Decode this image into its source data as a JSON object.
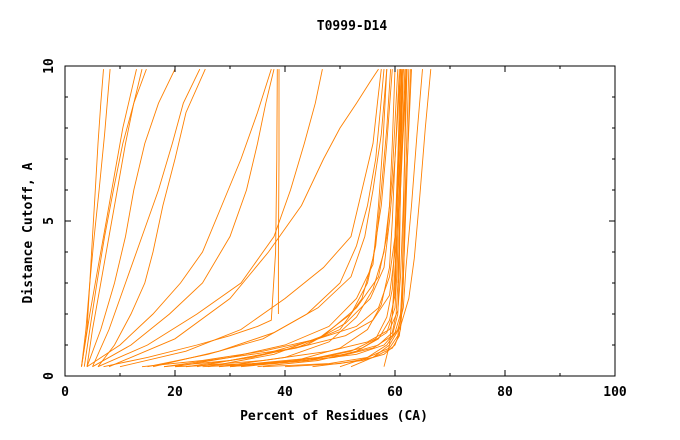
{
  "chart_data": {
    "type": "line",
    "title": "T0999-D14",
    "xlabel": "Percent of Residues (CA)",
    "ylabel": "Distance Cutoff, A",
    "xlim": [
      0,
      100
    ],
    "ylim": [
      0,
      10
    ],
    "x_ticks": [
      "0",
      "20",
      "40",
      "60",
      "80",
      "100"
    ],
    "y_ticks": [
      "0",
      "5",
      "10"
    ],
    "grid": false,
    "legend": "none",
    "line_color": "#ff8000",
    "series": [
      {
        "x": [
          3.0,
          4.0,
          4.5,
          5.0,
          5.5,
          6.0,
          6.5,
          7.0
        ],
        "y": [
          0.3,
          1.5,
          3.0,
          4.5,
          6.0,
          7.5,
          8.8,
          9.9
        ]
      },
      {
        "x": [
          3.0,
          3.8,
          4.5,
          5.3,
          6.2,
          7.2,
          8.2
        ],
        "y": [
          0.3,
          1.5,
          3.0,
          4.5,
          6.0,
          7.8,
          9.9
        ]
      },
      {
        "x": [
          3.5,
          4.5,
          5.8,
          7.2,
          8.8,
          10.5,
          12.5,
          14.0
        ],
        "y": [
          0.3,
          1.5,
          3.0,
          4.5,
          6.0,
          7.5,
          8.8,
          9.9
        ]
      },
      {
        "x": [
          4.0,
          5.0,
          6.5,
          8.0,
          9.5,
          11.0,
          12.5,
          14.8
        ],
        "y": [
          0.3,
          1.5,
          3.0,
          4.5,
          6.0,
          7.5,
          8.8,
          9.9
        ]
      },
      {
        "x": [
          3.0,
          4.5,
          6.0,
          7.5,
          9.0,
          10.5,
          13.0
        ],
        "y": [
          0.3,
          2.0,
          3.5,
          5.0,
          6.5,
          8.0,
          9.9
        ]
      },
      {
        "x": [
          4.0,
          6.5,
          9.0,
          11.0,
          12.5,
          14.5,
          17.0,
          20.0
        ],
        "y": [
          0.3,
          1.5,
          3.0,
          4.5,
          6.0,
          7.5,
          8.8,
          9.9
        ]
      },
      {
        "x": [
          5.0,
          8.0,
          11.0,
          14.0,
          17.0,
          19.5,
          21.5,
          24.5
        ],
        "y": [
          0.3,
          1.5,
          3.0,
          4.5,
          6.0,
          7.5,
          8.8,
          9.9
        ]
      },
      {
        "x": [
          6.0,
          9.0,
          12.0,
          14.5,
          16.0,
          17.8,
          20.0,
          22.0,
          25.5
        ],
        "y": [
          0.3,
          1.0,
          2.0,
          3.0,
          4.0,
          5.5,
          7.0,
          8.5,
          9.9
        ]
      },
      {
        "x": [
          4.0,
          10.0,
          16.0,
          21.0,
          25.0,
          28.5,
          32.0,
          35.0,
          37.5
        ],
        "y": [
          0.3,
          1.0,
          2.0,
          3.0,
          4.0,
          5.5,
          7.0,
          8.5,
          9.9
        ]
      },
      {
        "x": [
          5.0,
          12.0,
          19.0,
          25.0,
          30.0,
          33.0,
          35.0,
          36.5,
          38.0
        ],
        "y": [
          0.3,
          1.0,
          2.0,
          3.0,
          4.5,
          6.0,
          7.5,
          8.8,
          9.9
        ]
      },
      {
        "x": [
          7.0,
          15.0,
          24.0,
          30.0,
          35.0,
          37.5,
          38.3,
          38.5,
          38.6
        ],
        "y": [
          0.3,
          0.6,
          1.0,
          1.3,
          1.6,
          1.8,
          4.0,
          7.0,
          9.9
        ]
      },
      {
        "x": [
          38.8,
          38.8,
          38.9,
          38.9
        ],
        "y": [
          2.0,
          4.0,
          7.0,
          9.9
        ]
      },
      {
        "x": [
          6.0,
          15.0,
          24.0,
          32.0,
          38.0,
          41.0,
          43.5,
          45.5,
          46.8
        ],
        "y": [
          0.3,
          1.0,
          2.0,
          3.0,
          4.5,
          6.0,
          7.5,
          8.8,
          9.9
        ]
      },
      {
        "x": [
          8.0,
          20.0,
          30.0,
          37.0,
          43.0,
          47.0,
          50.0,
          53.0,
          55.5,
          57.0
        ],
        "y": [
          0.3,
          1.2,
          2.5,
          4.0,
          5.5,
          7.0,
          8.0,
          8.8,
          9.5,
          9.9
        ]
      },
      {
        "x": [
          10.0,
          22.0,
          32.0,
          40.0,
          47.0,
          52.0,
          54.0,
          56.0,
          56.8,
          57.5
        ],
        "y": [
          0.3,
          0.8,
          1.5,
          2.5,
          3.5,
          4.5,
          6.0,
          7.5,
          8.8,
          9.9
        ]
      },
      {
        "x": [
          15.0,
          26.0,
          36.0,
          44.0,
          50.0,
          53.0,
          55.0,
          56.5,
          57.3,
          58.0
        ],
        "y": [
          0.3,
          0.7,
          1.2,
          2.0,
          3.0,
          4.2,
          5.5,
          7.0,
          8.5,
          9.9
        ]
      },
      {
        "x": [
          20.0,
          30.0,
          40.0,
          48.0,
          53.0,
          56.0,
          57.0,
          57.8,
          58.5
        ],
        "y": [
          0.3,
          0.6,
          1.0,
          1.6,
          2.5,
          3.6,
          5.5,
          7.5,
          9.9
        ]
      },
      {
        "x": [
          16.0,
          28.0,
          38.0,
          46.0,
          52.0,
          54.5,
          56.0,
          57.5,
          58.5
        ],
        "y": [
          0.3,
          0.8,
          1.4,
          2.2,
          3.2,
          4.5,
          6.0,
          7.8,
          9.9
        ]
      },
      {
        "x": [
          24.0,
          36.0,
          46.0,
          52.0,
          55.0,
          56.5,
          57.5,
          58.5,
          59.2
        ],
        "y": [
          0.3,
          0.7,
          1.2,
          2.0,
          3.0,
          4.2,
          6.0,
          8.0,
          9.9
        ]
      },
      {
        "x": [
          18.0,
          30.0,
          42.0,
          50.0,
          54.0,
          56.0,
          57.5,
          58.5,
          59.5
        ],
        "y": [
          0.3,
          0.5,
          0.9,
          1.5,
          2.5,
          3.8,
          5.5,
          7.5,
          9.9
        ]
      },
      {
        "x": [
          28.0,
          40.0,
          48.0,
          53.0,
          56.0,
          58.0,
          59.0,
          59.5,
          60.0
        ],
        "y": [
          0.3,
          0.6,
          1.1,
          1.9,
          2.8,
          4.0,
          5.5,
          7.5,
          9.9
        ]
      },
      {
        "x": [
          26.0,
          38.0,
          47.0,
          53.0,
          57.0,
          58.5,
          59.5,
          60.5
        ],
        "y": [
          0.3,
          0.7,
          1.3,
          2.2,
          3.2,
          4.5,
          6.5,
          9.9
        ]
      },
      {
        "x": [
          30.0,
          42.0,
          50.0,
          55.0,
          57.5,
          59.0,
          59.5,
          60.0,
          61.0
        ],
        "y": [
          0.3,
          0.5,
          0.9,
          1.5,
          2.3,
          3.5,
          5.0,
          7.0,
          9.9
        ]
      },
      {
        "x": [
          22.0,
          34.0,
          44.0,
          51.0,
          55.5,
          58.0,
          59.0,
          60.0,
          60.8
        ],
        "y": [
          0.3,
          0.6,
          1.0,
          1.7,
          2.5,
          3.5,
          5.0,
          7.0,
          9.9
        ]
      },
      {
        "x": [
          32.0,
          44.0,
          52.0,
          56.5,
          58.5,
          59.5,
          60.0,
          60.5,
          61.0
        ],
        "y": [
          0.3,
          0.5,
          0.8,
          1.2,
          1.9,
          2.8,
          4.5,
          7.0,
          9.9
        ]
      },
      {
        "x": [
          35.0,
          46.0,
          53.0,
          57.0,
          59.0,
          60.0,
          60.3,
          60.6,
          61.2
        ],
        "y": [
          0.3,
          0.5,
          0.8,
          1.2,
          1.8,
          2.6,
          4.0,
          6.5,
          9.9
        ]
      },
      {
        "x": [
          14.0,
          25.0,
          36.0,
          46.0,
          53.0,
          57.0,
          59.0,
          60.0,
          60.5,
          61.0
        ],
        "y": [
          0.3,
          0.5,
          0.8,
          1.2,
          1.6,
          2.2,
          3.2,
          4.5,
          6.5,
          9.9
        ]
      },
      {
        "x": [
          18.0,
          30.0,
          42.0,
          51.0,
          56.0,
          59.0,
          60.0,
          60.5,
          61.5
        ],
        "y": [
          0.3,
          0.6,
          0.9,
          1.3,
          1.8,
          2.6,
          4.0,
          6.5,
          9.9
        ]
      },
      {
        "x": [
          20.0,
          34.0,
          46.0,
          54.0,
          58.5,
          60.0,
          60.4,
          60.8,
          61.3
        ],
        "y": [
          0.3,
          0.4,
          0.6,
          0.9,
          1.4,
          2.2,
          3.5,
          6.0,
          9.9
        ]
      },
      {
        "x": [
          25.0,
          38.0,
          49.0,
          56.0,
          59.5,
          60.5,
          60.8,
          61.0,
          61.5
        ],
        "y": [
          0.3,
          0.4,
          0.6,
          0.9,
          1.3,
          2.0,
          3.5,
          6.5,
          9.9
        ]
      },
      {
        "x": [
          28.0,
          42.0,
          51.0,
          57.0,
          59.5,
          60.2,
          60.6,
          61.0,
          61.8
        ],
        "y": [
          0.3,
          0.5,
          0.7,
          1.0,
          1.4,
          2.0,
          3.2,
          6.0,
          9.9
        ]
      },
      {
        "x": [
          36.0,
          48.0,
          55.0,
          59.0,
          60.5,
          61.0,
          61.3,
          61.6,
          62.0
        ],
        "y": [
          0.3,
          0.4,
          0.6,
          0.9,
          1.3,
          1.9,
          3.0,
          5.5,
          9.9
        ]
      },
      {
        "x": [
          22.0,
          36.0,
          48.0,
          55.0,
          59.0,
          60.5,
          61.0,
          61.5,
          62.2
        ],
        "y": [
          0.3,
          0.5,
          0.8,
          1.1,
          1.5,
          2.1,
          3.2,
          5.5,
          9.9
        ]
      },
      {
        "x": [
          40.0,
          50.0,
          56.0,
          59.5,
          60.8,
          61.2,
          61.5,
          61.8,
          62.5
        ],
        "y": [
          0.3,
          0.4,
          0.6,
          0.9,
          1.3,
          2.0,
          3.0,
          5.5,
          9.9
        ]
      },
      {
        "x": [
          30.0,
          44.0,
          53.0,
          58.0,
          60.0,
          61.0,
          61.5,
          62.0,
          62.8
        ],
        "y": [
          0.3,
          0.5,
          0.7,
          1.0,
          1.4,
          2.0,
          3.2,
          5.5,
          9.9
        ]
      },
      {
        "x": [
          45.0,
          54.0,
          58.0,
          60.0,
          61.0,
          61.3,
          61.6,
          62.0,
          63.0
        ],
        "y": [
          0.3,
          0.5,
          0.7,
          1.0,
          1.5,
          2.2,
          3.5,
          6.0,
          9.9
        ]
      },
      {
        "x": [
          50.0,
          55.0,
          58.5,
          60.5,
          61.5,
          62.0,
          63.0,
          64.0,
          65.0
        ],
        "y": [
          0.3,
          0.6,
          1.0,
          1.5,
          2.2,
          3.5,
          5.5,
          7.8,
          9.9
        ]
      },
      {
        "x": [
          52.0,
          56.0,
          59.0,
          61.0,
          62.5,
          63.5,
          64.5,
          65.5,
          66.5
        ],
        "y": [
          0.3,
          0.6,
          1.0,
          1.6,
          2.5,
          3.8,
          5.8,
          8.0,
          9.9
        ]
      },
      {
        "x": [
          58.0,
          59.0,
          59.5,
          60.0,
          60.5,
          61.0,
          61.5,
          62.0
        ],
        "y": [
          0.3,
          1.0,
          2.0,
          3.5,
          5.0,
          6.5,
          8.0,
          9.9
        ]
      },
      {
        "x": [
          59.5,
          60.0,
          60.3,
          60.6,
          61.0,
          61.3,
          61.5
        ],
        "y": [
          2.0,
          3.0,
          4.5,
          6.0,
          7.5,
          8.8,
          9.9
        ]
      },
      {
        "x": [
          60.5,
          60.8,
          61.0,
          61.4,
          61.8,
          62.2
        ],
        "y": [
          3.0,
          4.5,
          6.0,
          7.5,
          8.8,
          9.9
        ]
      }
    ]
  }
}
